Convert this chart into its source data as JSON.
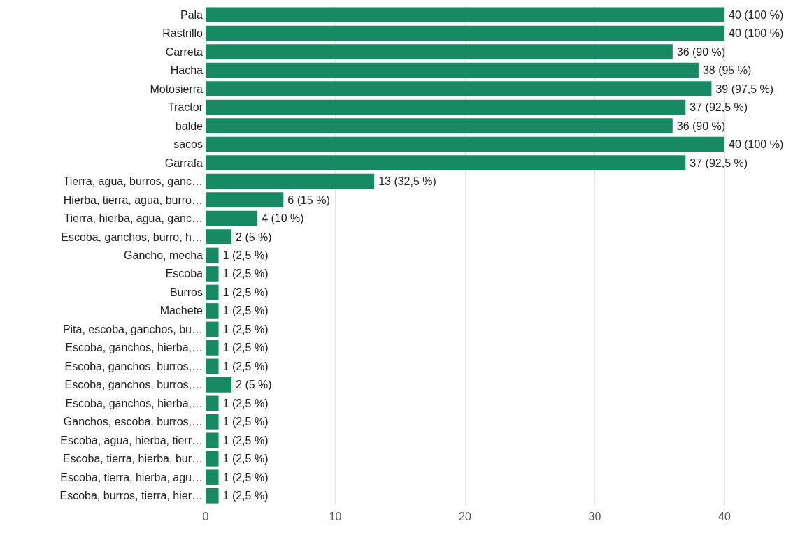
{
  "chart_data": {
    "type": "bar",
    "orientation": "horizontal",
    "categories": [
      "Pala",
      "Rastrillo",
      "Carreta",
      "Hacha",
      "Motosierra",
      "Tractor",
      "balde",
      "sacos",
      "Garrafa",
      "Tierra, agua, burros, ganc…",
      "Hierba, tierra, agua, burro…",
      "Tierra, hierba, agua, ganc…",
      "Escoba, ganchos, burro, h…",
      "Gancho, mecha",
      "Escoba",
      "Burros",
      "Machete",
      "Pita, escoba, ganchos, bu…",
      "Escoba, ganchos, hierba,…",
      "Escoba, ganchos, burros,…",
      "Escoba, ganchos, burros,…",
      "Escoba, ganchos, hierba,…",
      "Ganchos, escoba, burros,…",
      "Escoba, agua, hierba, tierr…",
      "Escoba, tierra, hierba, bur…",
      "Escoba, tierra, hierba, agu…",
      "Escoba, burros, tierra, hier…"
    ],
    "values": [
      40,
      40,
      36,
      38,
      39,
      37,
      36,
      40,
      37,
      13,
      6,
      4,
      2,
      1,
      1,
      1,
      1,
      1,
      1,
      1,
      2,
      1,
      1,
      1,
      1,
      1,
      1
    ],
    "value_labels": [
      "40 (100 %)",
      "40 (100 %)",
      "36 (90 %)",
      "38 (95 %)",
      "39 (97,5 %)",
      "37 (92,5 %)",
      "36 (90 %)",
      "40 (100 %)",
      "37 (92,5 %)",
      "13 (32,5 %)",
      "6 (15 %)",
      "4 (10 %)",
      "2 (5 %)",
      "1 (2,5 %)",
      "1 (2,5 %)",
      "1 (2,5 %)",
      "1 (2,5 %)",
      "1 (2,5 %)",
      "1 (2,5 %)",
      "1 (2,5 %)",
      "2 (5 %)",
      "1 (2,5 %)",
      "1 (2,5 %)",
      "1 (2,5 %)",
      "1 (2,5 %)",
      "1 (2,5 %)",
      "1 (2,5 %)"
    ],
    "color": "#178a64",
    "xlim": [
      0,
      40
    ],
    "xticks": [
      0,
      10,
      20,
      30,
      40
    ],
    "grid": "x"
  }
}
